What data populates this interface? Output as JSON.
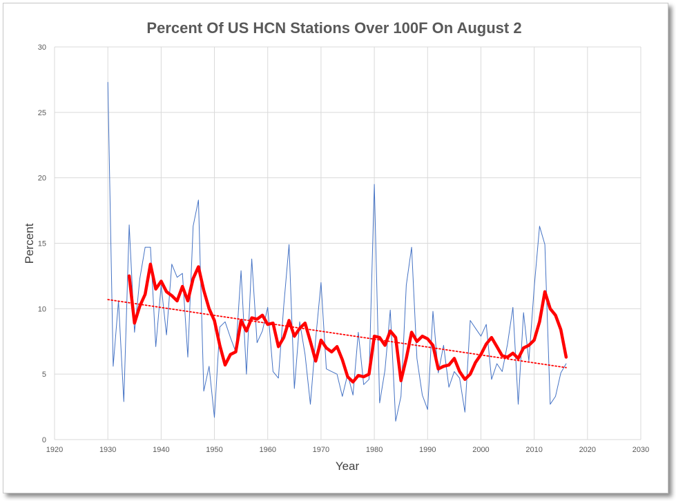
{
  "chart_data": {
    "type": "line",
    "title": "Percent Of US HCN Stations Over 100F On August 2",
    "xlabel": "Year",
    "ylabel": "Percent",
    "xlim": [
      1920,
      2030
    ],
    "ylim": [
      0,
      30
    ],
    "x_ticks": [
      1920,
      1930,
      1940,
      1950,
      1960,
      1970,
      1980,
      1990,
      2000,
      2010,
      2020,
      2030
    ],
    "y_ticks": [
      0,
      5,
      10,
      15,
      20,
      25,
      30
    ],
    "grid": true,
    "colors": {
      "annual": "#4472c4",
      "moving_average": "#ff0000",
      "trend": "#ff0000"
    },
    "series": [
      {
        "style": "thin-line",
        "x": [
          1930,
          1931,
          1932,
          1933,
          1934,
          1935,
          1936,
          1937,
          1938,
          1939,
          1940,
          1941,
          1942,
          1943,
          1944,
          1945,
          1946,
          1947,
          1948,
          1949,
          1950,
          1951,
          1952,
          1953,
          1954,
          1955,
          1956,
          1957,
          1958,
          1959,
          1960,
          1961,
          1962,
          1963,
          1964,
          1965,
          1966,
          1967,
          1968,
          1969,
          1970,
          1971,
          1972,
          1973,
          1974,
          1975,
          1976,
          1977,
          1978,
          1979,
          1980,
          1981,
          1982,
          1983,
          1984,
          1985,
          1986,
          1987,
          1988,
          1989,
          1990,
          1991,
          1992,
          1993,
          1994,
          1995,
          1996,
          1997,
          1998,
          1999,
          2000,
          2001,
          2002,
          2003,
          2004,
          2005,
          2006,
          2007,
          2008,
          2009,
          2010,
          2011,
          2012,
          2013,
          2014,
          2015,
          2016
        ],
        "y": [
          27.3,
          5.6,
          10.6,
          2.9,
          16.4,
          8.2,
          12.3,
          14.7,
          14.7,
          7.1,
          11.8,
          8.0,
          13.4,
          12.4,
          12.7,
          6.3,
          16.3,
          18.3,
          3.7,
          5.6,
          1.7,
          8.6,
          9.0,
          7.8,
          6.7,
          12.9,
          5.0,
          13.8,
          7.4,
          8.3,
          10.1,
          5.2,
          4.7,
          10.2,
          14.9,
          3.9,
          9.0,
          6.5,
          2.7,
          7.7,
          12.0,
          5.4,
          5.2,
          5.0,
          3.3,
          5.0,
          3.4,
          8.2,
          4.2,
          4.6,
          19.5,
          2.8,
          5.3,
          9.9,
          1.4,
          3.3,
          11.8,
          14.7,
          6.2,
          3.4,
          2.3,
          9.8,
          5.1,
          7.2,
          4.0,
          5.2,
          4.7,
          2.1,
          9.1,
          8.5,
          7.9,
          8.8,
          4.6,
          5.8,
          5.2,
          7.3,
          10.1,
          2.7,
          9.7,
          6.0,
          11.6,
          16.3,
          14.9,
          2.7,
          3.3,
          5.1,
          5.8
        ]
      },
      {
        "style": "thick-line",
        "x": [
          1934,
          1935,
          1936,
          1937,
          1938,
          1939,
          1940,
          1941,
          1942,
          1943,
          1944,
          1945,
          1946,
          1947,
          1948,
          1949,
          1950,
          1951,
          1952,
          1953,
          1954,
          1955,
          1956,
          1957,
          1958,
          1959,
          1960,
          1961,
          1962,
          1963,
          1964,
          1965,
          1966,
          1967,
          1968,
          1969,
          1970,
          1971,
          1972,
          1973,
          1974,
          1975,
          1976,
          1977,
          1978,
          1979,
          1980,
          1981,
          1982,
          1983,
          1984,
          1985,
          1986,
          1987,
          1988,
          1989,
          1990,
          1991,
          1992,
          1993,
          1994,
          1995,
          1996,
          1997,
          1998,
          1999,
          2000,
          2001,
          2002,
          2003,
          2004,
          2005,
          2006,
          2007,
          2008,
          2009,
          2010,
          2011,
          2012,
          2013,
          2014,
          2015,
          2016
        ],
        "y": [
          12.5,
          8.9,
          10.2,
          11.1,
          13.4,
          11.5,
          12.1,
          11.3,
          11.0,
          10.6,
          11.7,
          10.6,
          12.3,
          13.2,
          11.4,
          10.0,
          9.1,
          7.2,
          5.7,
          6.5,
          6.7,
          9.1,
          8.3,
          9.3,
          9.2,
          9.5,
          8.8,
          8.9,
          7.1,
          7.8,
          9.1,
          7.9,
          8.5,
          8.9,
          7.5,
          6.0,
          7.6,
          7.0,
          6.7,
          7.1,
          6.1,
          4.8,
          4.4,
          4.9,
          4.8,
          5.0,
          7.9,
          7.8,
          7.2,
          8.3,
          7.8,
          4.5,
          6.2,
          8.2,
          7.5,
          7.9,
          7.7,
          7.2,
          5.4,
          5.6,
          5.7,
          6.2,
          5.2,
          4.6,
          5.0,
          5.9,
          6.5,
          7.3,
          7.8,
          7.1,
          6.4,
          6.3,
          6.6,
          6.2,
          7.0,
          7.2,
          7.6,
          9.0,
          11.3,
          10.0,
          9.5,
          8.4,
          6.3
        ]
      },
      {
        "style": "dotted-trend",
        "x": [
          1930,
          2016
        ],
        "y": [
          10.7,
          5.5
        ]
      }
    ]
  }
}
